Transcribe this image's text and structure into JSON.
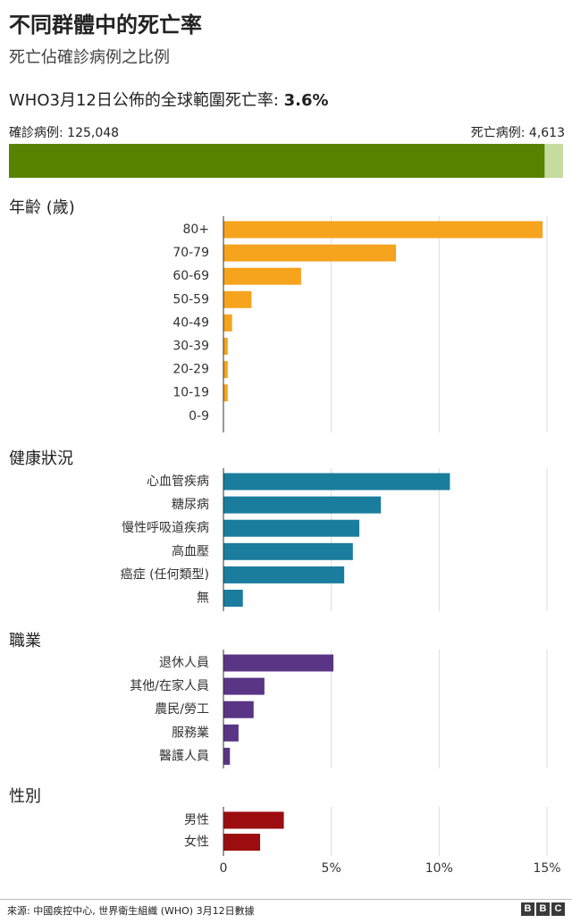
{
  "header": {
    "title": "不同群體中的死亡率",
    "subtitle": "死亡佔確診病例之比例",
    "who_text": "WHO3月12日公佈的全球範圍死亡率: ",
    "who_value": "3.6%"
  },
  "summary_bar": {
    "confirmed_label": "確診病例: 125,048",
    "death_label": "死亡病例: 4,613",
    "confirmed_cases": 125048,
    "deaths": 4613,
    "confirmed_color": "#588300",
    "death_color": "#c5dc9e"
  },
  "chart_data": {
    "type": "bar",
    "orientation": "horizontal",
    "xlim": [
      0,
      15
    ],
    "xticks": [
      0,
      5,
      10,
      15
    ],
    "xtick_labels": [
      "0",
      "5%",
      "10%",
      "15%"
    ],
    "xlabel": "",
    "ylabel": "",
    "grid": true,
    "sections": [
      {
        "name": "年齡 (歲)",
        "color": "#f6a31d",
        "categories": [
          "80+",
          "70-79",
          "60-69",
          "50-59",
          "40-49",
          "30-39",
          "20-29",
          "10-19",
          "0-9"
        ],
        "values": [
          14.8,
          8.0,
          3.6,
          1.3,
          0.4,
          0.2,
          0.2,
          0.2,
          0
        ]
      },
      {
        "name": "健康狀況",
        "color": "#1a7d9d",
        "categories": [
          "心血管疾病",
          "糖尿病",
          "慢性呼吸道疾病",
          "高血壓",
          "癌症 (任何類型)",
          "無"
        ],
        "values": [
          10.5,
          7.3,
          6.3,
          6.0,
          5.6,
          0.9
        ]
      },
      {
        "name": "職業",
        "color": "#5a3485",
        "categories": [
          "退休人員",
          "其他/在家人員",
          "農民/勞工",
          "服務業",
          "醫護人員"
        ],
        "values": [
          5.1,
          1.9,
          1.4,
          0.7,
          0.3
        ]
      },
      {
        "name": "性別",
        "color": "#9b0d0f",
        "categories": [
          "男性",
          "女性"
        ],
        "values": [
          2.8,
          1.7
        ]
      }
    ]
  },
  "footer": {
    "source": "來源: 中國疾控中心, 世界衛生組織 (WHO) 3月12日數據",
    "logo_letters": [
      "B",
      "B",
      "C"
    ]
  }
}
